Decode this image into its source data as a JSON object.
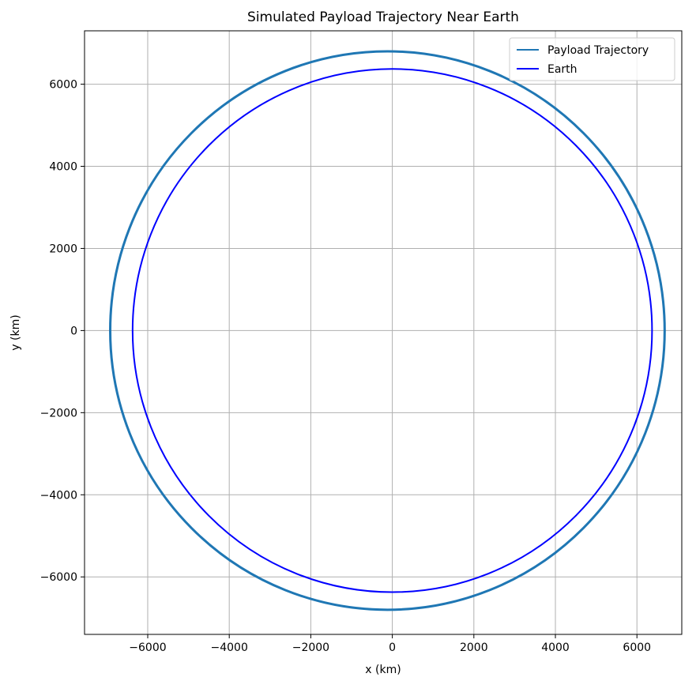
{
  "chart_data": {
    "type": "line",
    "title": "Simulated Payload Trajectory Near Earth",
    "xlabel": "x (km)",
    "ylabel": "y (km)",
    "xlim": [
      -7550,
      7100
    ],
    "ylim": [
      -7400,
      7300
    ],
    "xticks": [
      -6000,
      -4000,
      -2000,
      0,
      2000,
      4000,
      6000
    ],
    "yticks": [
      -6000,
      -4000,
      -2000,
      0,
      2000,
      4000,
      6000
    ],
    "xtick_labels": [
      "−6000",
      "−4000",
      "−2000",
      "0",
      "2000",
      "4000",
      "6000"
    ],
    "ytick_labels": [
      "−6000",
      "−4000",
      "−2000",
      "0",
      "2000",
      "4000",
      "6000"
    ],
    "grid": true,
    "legend_position": "top-right",
    "series": [
      {
        "name": "Payload Trajectory",
        "color": "#1f77b4",
        "shape": "circle",
        "center": [
          -120,
          0
        ],
        "radius": 6800,
        "extent": {
          "x": [
            -6920,
            6680
          ],
          "y": [
            -6800,
            6800
          ]
        }
      },
      {
        "name": "Earth",
        "color": "#0000ff",
        "shape": "circle",
        "center": [
          0,
          0
        ],
        "radius": 6371,
        "extent": {
          "x": [
            -6371,
            6371
          ],
          "y": [
            -6371,
            6371
          ]
        }
      }
    ]
  }
}
